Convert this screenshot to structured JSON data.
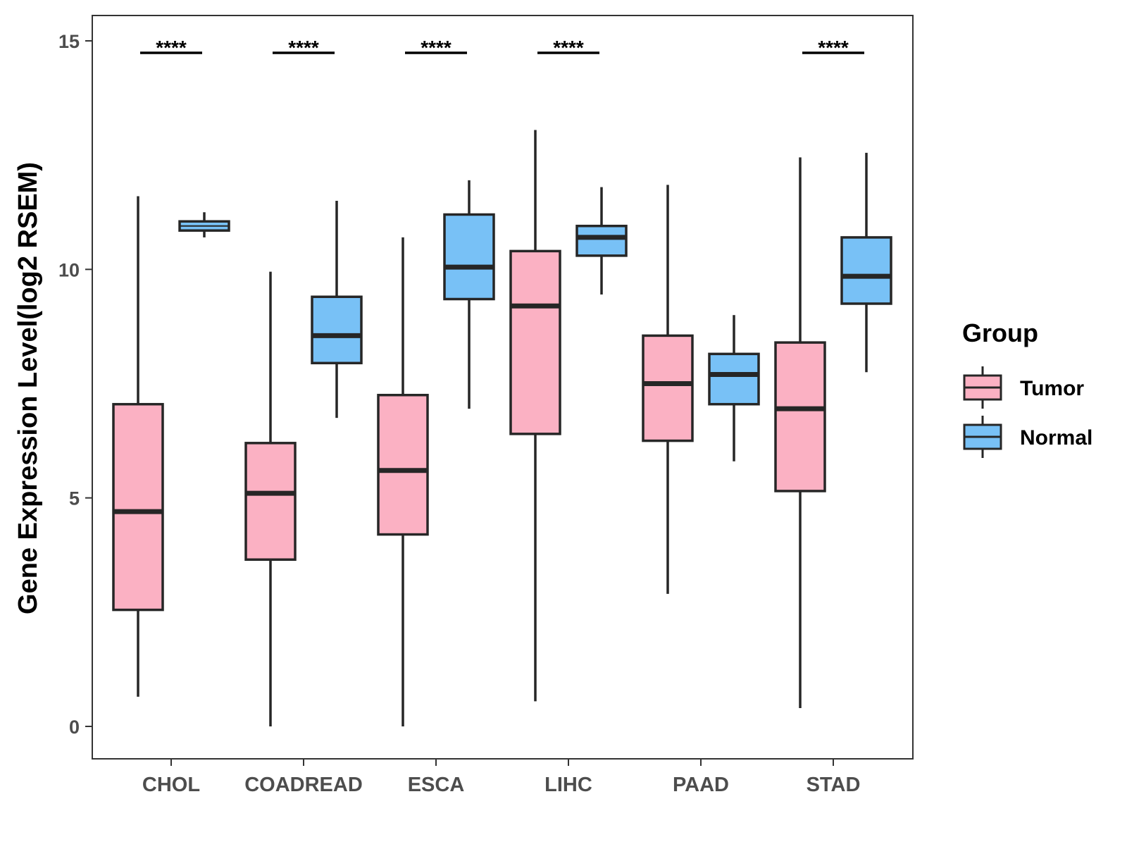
{
  "chart_data": {
    "type": "boxplot",
    "title": "",
    "xlabel": "",
    "ylabel": "Gene Expression Level(log2 RSEM)",
    "ylim": [
      -0.7,
      15.55
    ],
    "yticks": [
      0,
      5,
      10,
      15
    ],
    "grid": false,
    "categories": [
      "CHOL",
      "COADREAD",
      "ESCA",
      "LIHC",
      "PAAD",
      "STAD"
    ],
    "legend": {
      "title": "Group",
      "position": "right",
      "entries": [
        {
          "name": "Tumor",
          "color": "#fbb1c3"
        },
        {
          "name": "Normal",
          "color": "#78c1f6"
        }
      ]
    },
    "series": [
      {
        "name": "Tumor",
        "color": "#fbb1c3",
        "boxes": [
          {
            "min": 0.65,
            "q1": 2.55,
            "median": 4.7,
            "q3": 7.05,
            "max": 11.6
          },
          {
            "min": 0.0,
            "q1": 3.65,
            "median": 5.1,
            "q3": 6.2,
            "max": 9.95
          },
          {
            "min": 0.0,
            "q1": 4.2,
            "median": 5.6,
            "q3": 7.25,
            "max": 10.7
          },
          {
            "min": 0.55,
            "q1": 6.4,
            "median": 9.2,
            "q3": 10.4,
            "max": 13.05
          },
          {
            "min": 2.9,
            "q1": 6.25,
            "median": 7.5,
            "q3": 8.55,
            "max": 11.85
          },
          {
            "min": 0.4,
            "q1": 5.15,
            "median": 6.95,
            "q3": 8.4,
            "max": 12.45
          }
        ]
      },
      {
        "name": "Normal",
        "color": "#78c1f6",
        "boxes": [
          {
            "min": 10.7,
            "q1": 10.85,
            "median": 10.95,
            "q3": 11.05,
            "max": 11.25
          },
          {
            "min": 6.75,
            "q1": 7.95,
            "median": 8.55,
            "q3": 9.4,
            "max": 11.5
          },
          {
            "min": 6.95,
            "q1": 9.35,
            "median": 10.05,
            "q3": 11.2,
            "max": 11.95
          },
          {
            "min": 9.45,
            "q1": 10.3,
            "median": 10.7,
            "q3": 10.95,
            "max": 11.8
          },
          {
            "min": 5.8,
            "q1": 7.05,
            "median": 7.7,
            "q3": 8.15,
            "max": 9.0
          },
          {
            "min": 7.75,
            "q1": 9.25,
            "median": 9.85,
            "q3": 10.7,
            "max": 12.55
          }
        ]
      }
    ],
    "significance": [
      {
        "category": "CHOL",
        "label": "****"
      },
      {
        "category": "COADREAD",
        "label": "****"
      },
      {
        "category": "ESCA",
        "label": "****"
      },
      {
        "category": "LIHC",
        "label": "****"
      },
      {
        "category": "PAAD",
        "label": ""
      },
      {
        "category": "STAD",
        "label": "****"
      }
    ]
  }
}
